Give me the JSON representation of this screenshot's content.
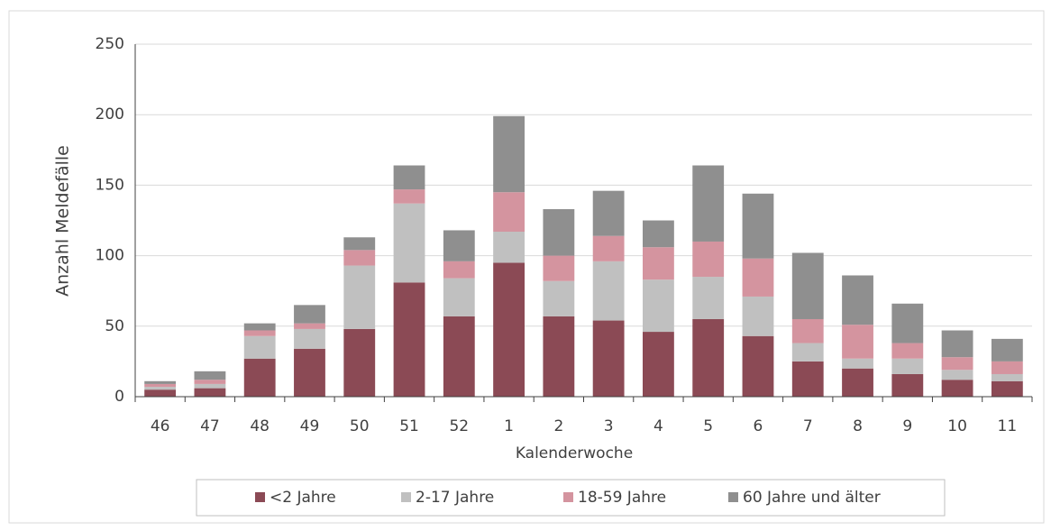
{
  "chart_data": {
    "type": "bar",
    "stacked": true,
    "x_label": "Kalenderwoche",
    "y_label": "Anzahl Meldefälle",
    "categories": [
      "46",
      "47",
      "48",
      "49",
      "50",
      "51",
      "52",
      "1",
      "2",
      "3",
      "4",
      "5",
      "6",
      "7",
      "8",
      "9",
      "10",
      "11"
    ],
    "series": [
      {
        "name": "<2 Jahre",
        "color": "#8b4a55",
        "values": [
          5,
          6,
          27,
          34,
          48,
          81,
          57,
          95,
          57,
          54,
          46,
          55,
          43,
          25,
          20,
          16,
          12,
          11
        ]
      },
      {
        "name": "2-17 Jahre",
        "color": "#c0c0c0",
        "values": [
          2,
          3,
          16,
          14,
          45,
          56,
          27,
          22,
          25,
          42,
          37,
          30,
          28,
          13,
          7,
          11,
          7,
          5
        ]
      },
      {
        "name": "18-59 Jahre",
        "color": "#d4949f",
        "values": [
          2,
          3,
          4,
          4,
          11,
          10,
          12,
          28,
          18,
          18,
          23,
          25,
          27,
          17,
          24,
          11,
          9,
          9
        ]
      },
      {
        "name": "60 Jahre und älter",
        "color": "#8f8f8f",
        "values": [
          2,
          6,
          5,
          13,
          9,
          17,
          22,
          54,
          33,
          32,
          19,
          54,
          46,
          47,
          35,
          28,
          19,
          16
        ]
      }
    ],
    "ylim": [
      0,
      250
    ],
    "yticks": [
      0,
      50,
      100,
      150,
      200,
      250
    ],
    "grid": true,
    "legend": "bottom"
  }
}
